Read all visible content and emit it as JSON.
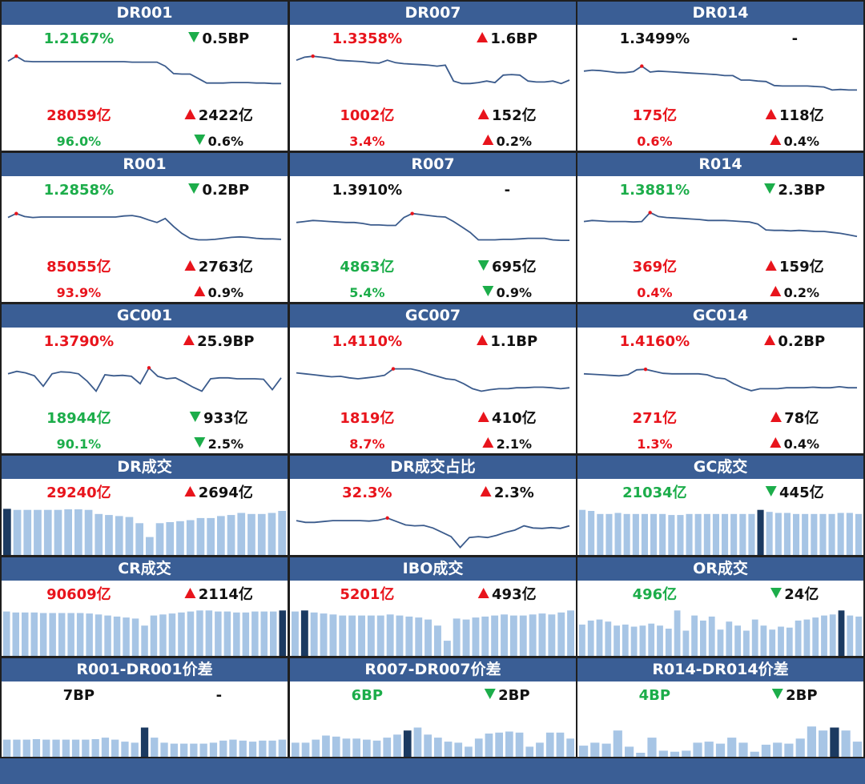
{
  "colors": {
    "header_bg": "#3a5e95",
    "up": "#e8141c",
    "down": "#1cad4a",
    "line": "#3b5b8c",
    "bar": "#a7c5e5",
    "bar_highlight": "#1b3a61"
  },
  "panels": [
    {
      "title": "DR001",
      "type": "line",
      "rate": "1.2167%",
      "rate_color": "green",
      "rate_change": "0.5BP",
      "rate_dir": "down",
      "vol": "28059亿",
      "vol_color": "red",
      "vol_change": "2422亿",
      "vol_dir": "up",
      "share": "96.0%",
      "share_color": "green",
      "share_change": "0.6%",
      "share_dir": "down",
      "series": [
        80,
        90,
        80,
        79,
        79,
        79,
        79,
        79,
        79,
        79,
        79,
        79,
        79,
        79,
        79,
        78,
        78,
        78,
        78,
        70,
        55,
        54,
        54,
        45,
        36,
        36,
        36,
        37,
        37,
        37,
        36,
        36,
        35,
        35
      ],
      "marker": 1
    },
    {
      "title": "DR007",
      "type": "line",
      "rate": "1.3358%",
      "rate_color": "red",
      "rate_change": "1.6BP",
      "rate_dir": "up",
      "vol": "1002亿",
      "vol_color": "red",
      "vol_change": "152亿",
      "vol_dir": "up",
      "share": "3.4%",
      "share_color": "red",
      "share_change": "0.2%",
      "share_dir": "up",
      "series": [
        82,
        88,
        90,
        88,
        86,
        82,
        81,
        80,
        79,
        77,
        76,
        82,
        77,
        75,
        74,
        73,
        72,
        70,
        72,
        40,
        35,
        35,
        37,
        40,
        37,
        52,
        53,
        52,
        40,
        38,
        38,
        40,
        35,
        42
      ],
      "marker": 2
    },
    {
      "title": "DR014",
      "type": "line",
      "rate": "1.3499%",
      "rate_color": "black",
      "rate_change": "-",
      "rate_dir": "none",
      "vol": "175亿",
      "vol_color": "red",
      "vol_change": "118亿",
      "vol_dir": "up",
      "share": "0.6%",
      "share_color": "red",
      "share_change": "0.4%",
      "share_dir": "up",
      "series": [
        60,
        62,
        61,
        59,
        57,
        57,
        59,
        70,
        58,
        60,
        59,
        58,
        57,
        56,
        55,
        54,
        53,
        51,
        51,
        42,
        42,
        40,
        39,
        31,
        30,
        30,
        30,
        30,
        29,
        28,
        22,
        23,
        22,
        22
      ],
      "marker": 7
    },
    {
      "title": "R001",
      "type": "line",
      "rate": "1.2858%",
      "rate_color": "green",
      "rate_change": "0.2BP",
      "rate_dir": "down",
      "vol": "85055亿",
      "vol_color": "red",
      "vol_change": "2763亿",
      "vol_dir": "up",
      "share": "93.9%",
      "share_color": "red",
      "share_change": "0.9%",
      "share_dir": "up",
      "series": [
        70,
        78,
        72,
        70,
        71,
        71,
        71,
        71,
        71,
        71,
        71,
        71,
        71,
        71,
        73,
        74,
        71,
        65,
        60,
        68,
        52,
        38,
        28,
        25,
        25,
        26,
        28,
        30,
        31,
        30,
        28,
        27,
        27,
        26
      ],
      "marker": 1
    },
    {
      "title": "R007",
      "type": "line",
      "rate": "1.3910%",
      "rate_color": "black",
      "rate_change": "-",
      "rate_dir": "none",
      "vol": "4863亿",
      "vol_color": "green",
      "vol_change": "695亿",
      "vol_dir": "down",
      "share": "5.4%",
      "share_color": "green",
      "share_change": "0.9%",
      "share_dir": "down",
      "series": [
        60,
        62,
        64,
        63,
        62,
        61,
        60,
        60,
        58,
        55,
        55,
        54,
        54,
        70,
        78,
        76,
        74,
        72,
        71,
        62,
        51,
        40,
        25,
        25,
        25,
        26,
        26,
        27,
        28,
        28,
        28,
        25,
        24,
        24
      ],
      "marker": 14
    },
    {
      "title": "R014",
      "type": "line",
      "rate": "1.3881%",
      "rate_color": "green",
      "rate_change": "2.3BP",
      "rate_dir": "down",
      "vol": "369亿",
      "vol_color": "red",
      "vol_change": "159亿",
      "vol_dir": "up",
      "share": "0.4%",
      "share_color": "red",
      "share_change": "0.2%",
      "share_dir": "up",
      "series": [
        62,
        64,
        63,
        62,
        62,
        62,
        61,
        62,
        80,
        72,
        70,
        69,
        68,
        67,
        66,
        64,
        64,
        64,
        63,
        62,
        61,
        57,
        45,
        44,
        44,
        43,
        44,
        43,
        42,
        42,
        40,
        38,
        35,
        32
      ],
      "marker": 8
    },
    {
      "title": "GC001",
      "type": "line",
      "rate": "1.3790%",
      "rate_color": "red",
      "rate_change": "25.9BP",
      "rate_dir": "up",
      "vol": "18944亿",
      "vol_color": "green",
      "vol_change": "933亿",
      "vol_dir": "down",
      "share": "90.1%",
      "share_color": "green",
      "share_change": "2.5%",
      "share_dir": "down",
      "series": [
        60,
        65,
        62,
        56,
        35,
        60,
        64,
        63,
        60,
        45,
        25,
        58,
        56,
        57,
        55,
        40,
        72,
        55,
        50,
        52,
        43,
        33,
        25,
        50,
        52,
        52,
        50,
        50,
        50,
        49,
        28,
        52
      ],
      "marker": 16
    },
    {
      "title": "GC007",
      "type": "line",
      "rate": "1.4110%",
      "rate_color": "red",
      "rate_change": "1.1BP",
      "rate_dir": "up",
      "vol": "1819亿",
      "vol_color": "red",
      "vol_change": "410亿",
      "vol_dir": "up",
      "share": "8.7%",
      "share_color": "red",
      "share_change": "2.1%",
      "share_dir": "up",
      "series": [
        62,
        60,
        58,
        56,
        54,
        55,
        52,
        50,
        52,
        54,
        57,
        70,
        70,
        70,
        66,
        60,
        55,
        50,
        48,
        40,
        30,
        25,
        28,
        30,
        30,
        32,
        32,
        33,
        33,
        32,
        30,
        32
      ],
      "marker": 11
    },
    {
      "title": "GC014",
      "type": "line",
      "rate": "1.4160%",
      "rate_color": "red",
      "rate_change": "0.2BP",
      "rate_dir": "up",
      "vol": "271亿",
      "vol_color": "red",
      "vol_change": "78亿",
      "vol_dir": "up",
      "share": "1.3%",
      "share_color": "red",
      "share_change": "0.4%",
      "share_dir": "up",
      "series": [
        60,
        59,
        58,
        57,
        56,
        58,
        68,
        69,
        65,
        61,
        60,
        60,
        60,
        60,
        58,
        52,
        50,
        40,
        32,
        26,
        30,
        30,
        30,
        32,
        32,
        32,
        33,
        32,
        32,
        34,
        32,
        32
      ],
      "marker": 7
    },
    {
      "title": "DR成交",
      "type": "bar",
      "rate": "29240亿",
      "rate_color": "red",
      "rate_change": "2694亿",
      "rate_dir": "up",
      "series": [
        90,
        88,
        88,
        88,
        88,
        88,
        89,
        89,
        88,
        80,
        78,
        76,
        74,
        62,
        35,
        62,
        64,
        66,
        68,
        72,
        72,
        76,
        78,
        82,
        80,
        80,
        82,
        86
      ],
      "highlight": 0
    },
    {
      "title": "DR成交占比",
      "type": "line",
      "rate": "32.3%",
      "rate_color": "red",
      "rate_change": "2.3%",
      "rate_dir": "up",
      "series": [
        72,
        68,
        68,
        70,
        72,
        72,
        72,
        72,
        71,
        73,
        78,
        70,
        62,
        60,
        61,
        55,
        45,
        35,
        10,
        33,
        35,
        33,
        38,
        45,
        50,
        60,
        55,
        54,
        56,
        54,
        60
      ],
      "marker": 10
    },
    {
      "title": "GC成交",
      "type": "bar",
      "rate": "21034亿",
      "rate_color": "green",
      "rate_change": "445亿",
      "rate_dir": "down",
      "series": [
        88,
        86,
        80,
        80,
        82,
        80,
        80,
        80,
        80,
        80,
        78,
        78,
        80,
        80,
        80,
        80,
        80,
        80,
        80,
        80,
        88,
        84,
        82,
        82,
        80,
        80,
        80,
        80,
        80,
        82,
        82,
        80
      ],
      "highlight": 20
    },
    {
      "title": "CR成交",
      "type": "bar",
      "rate": "90609亿",
      "rate_color": "red",
      "rate_change": "2114亿",
      "rate_dir": "up",
      "series": [
        88,
        86,
        86,
        86,
        85,
        85,
        85,
        85,
        85,
        84,
        82,
        80,
        78,
        76,
        74,
        60,
        80,
        82,
        84,
        86,
        88,
        90,
        90,
        88,
        88,
        86,
        86,
        88,
        88,
        88,
        90
      ],
      "highlight": 30
    },
    {
      "title": "IBO成交",
      "type": "bar",
      "rate": "5201亿",
      "rate_color": "red",
      "rate_change": "493亿",
      "rate_dir": "up",
      "series": [
        88,
        90,
        86,
        84,
        82,
        80,
        80,
        80,
        80,
        80,
        82,
        80,
        78,
        76,
        72,
        60,
        30,
        74,
        72,
        76,
        78,
        80,
        82,
        80,
        80,
        82,
        84,
        82,
        86,
        90
      ],
      "highlight": 1
    },
    {
      "title": "OR成交",
      "type": "bar",
      "rate": "496亿",
      "rate_color": "green",
      "rate_change": "24亿",
      "rate_dir": "down",
      "series": [
        62,
        70,
        72,
        68,
        60,
        62,
        58,
        60,
        64,
        60,
        54,
        90,
        50,
        80,
        70,
        78,
        52,
        68,
        60,
        50,
        72,
        60,
        52,
        58,
        56,
        70,
        72,
        76,
        80,
        82,
        90,
        80,
        78
      ],
      "highlight": 30
    },
    {
      "title": "R001-DR001价差",
      "type": "bar",
      "rate": "7BP",
      "rate_color": "black",
      "rate_change": "-",
      "rate_dir": "none",
      "series": [
        34,
        34,
        34,
        35,
        34,
        34,
        34,
        34,
        34,
        35,
        38,
        34,
        30,
        28,
        58,
        38,
        28,
        26,
        26,
        26,
        26,
        28,
        32,
        34,
        32,
        30,
        32,
        32,
        34
      ],
      "highlight": 14
    },
    {
      "title": "R007-DR007价差",
      "type": "bar",
      "rate": "6BP",
      "rate_color": "green",
      "rate_change": "2BP",
      "rate_dir": "down",
      "series": [
        28,
        28,
        34,
        42,
        40,
        36,
        36,
        34,
        32,
        38,
        44,
        52,
        58,
        44,
        38,
        30,
        28,
        20,
        36,
        46,
        48,
        50,
        48,
        20,
        28,
        48,
        48,
        36
      ],
      "highlight": 11
    },
    {
      "title": "R014-DR014价差",
      "type": "bar",
      "rate": "4BP",
      "rate_color": "green",
      "rate_change": "2BP",
      "rate_dir": "down",
      "series": [
        22,
        28,
        26,
        52,
        20,
        8,
        38,
        12,
        10,
        12,
        28,
        30,
        26,
        38,
        28,
        10,
        24,
        28,
        26,
        36,
        60,
        52,
        58,
        52,
        30
      ],
      "highlight": 22
    }
  ]
}
